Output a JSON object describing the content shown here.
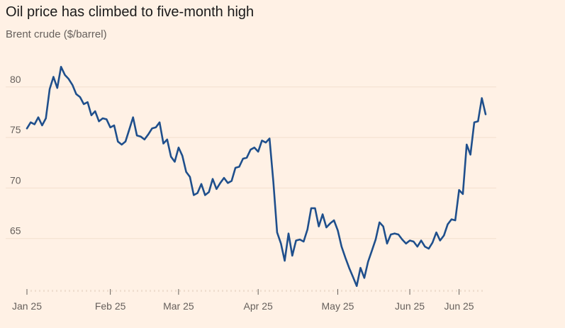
{
  "title": "Oil price has climbed to five-month high",
  "subtitle": "Brent crude ($/barrel)",
  "colors": {
    "background": "#fff1e5",
    "line": "#1f4f8c",
    "grid": "#f2dfce",
    "text": "#66605c"
  },
  "chart_data": {
    "type": "line",
    "title": "Oil price has climbed to five-month high",
    "subtitle": "Brent crude ($/barrel)",
    "xlabel": "",
    "ylabel": "",
    "ylim": [
      60,
      83
    ],
    "yticks": [
      65,
      70,
      75,
      80
    ],
    "xtick_labels": [
      "Jan 25",
      "Feb 25",
      "Mar 25",
      "Apr 25",
      "May 25",
      "Jun 25",
      "Jun 25"
    ],
    "xtick_index": [
      0,
      22,
      40,
      61,
      82,
      101,
      114
    ],
    "grid": true,
    "series": [
      {
        "name": "Brent crude",
        "values": [
          75.9,
          76.5,
          76.3,
          77.0,
          76.2,
          76.9,
          79.8,
          81.0,
          79.9,
          82.0,
          81.2,
          80.8,
          80.2,
          79.3,
          79.0,
          78.3,
          78.5,
          77.2,
          77.6,
          76.6,
          76.9,
          76.8,
          76.0,
          76.2,
          74.6,
          74.3,
          74.6,
          75.8,
          77.0,
          75.2,
          75.1,
          74.8,
          75.3,
          75.9,
          76.0,
          76.5,
          74.4,
          74.8,
          73.1,
          72.6,
          74.0,
          73.2,
          71.6,
          71.1,
          69.3,
          69.5,
          70.4,
          69.3,
          69.6,
          70.9,
          69.9,
          70.5,
          71.0,
          70.5,
          70.7,
          72.0,
          72.1,
          72.9,
          73.0,
          73.8,
          74.0,
          73.6,
          74.7,
          74.5,
          74.9,
          70.6,
          65.6,
          64.5,
          62.8,
          65.5,
          63.3,
          64.8,
          64.9,
          64.7,
          65.9,
          68.0,
          68.0,
          66.2,
          67.4,
          66.1,
          66.5,
          66.8,
          65.8,
          64.2,
          63.1,
          62.1,
          61.2,
          60.3,
          62.1,
          61.1,
          62.7,
          63.8,
          64.9,
          66.6,
          66.2,
          64.5,
          65.4,
          65.5,
          65.4,
          64.9,
          64.5,
          64.8,
          64.7,
          64.2,
          64.8,
          64.2,
          64.0,
          64.6,
          65.6,
          64.8,
          65.3,
          66.4,
          66.9,
          66.8,
          69.8,
          69.4,
          74.3,
          73.3,
          76.5,
          76.6,
          78.9,
          77.3
        ]
      }
    ]
  }
}
